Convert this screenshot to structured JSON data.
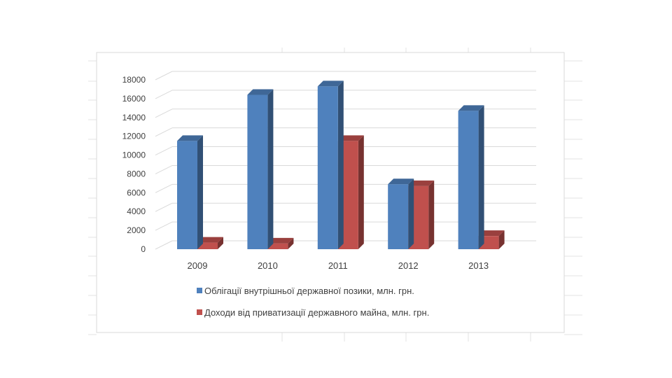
{
  "chart_data": {
    "type": "bar",
    "style": "3d-clustered-column",
    "title": "",
    "xlabel": "",
    "ylabel": "",
    "categories": [
      "2009",
      "2010",
      "2011",
      "2012",
      "2013"
    ],
    "series": [
      {
        "name": "Облігації внутрішньої державної позики, млн. грн.",
        "color": "#4F81BD",
        "values": [
          11500,
          16400,
          17300,
          6900,
          14700
        ]
      },
      {
        "name": "Доходи від приватизації державного майна, млн. грн.",
        "color": "#C0504D",
        "values": [
          700,
          600,
          11500,
          6700,
          1400
        ]
      }
    ],
    "ylim": [
      0,
      18000
    ],
    "yticks": [
      "0",
      "2000",
      "4000",
      "6000",
      "8000",
      "10000",
      "12000",
      "14000",
      "16000",
      "18000"
    ],
    "grid": true,
    "legend": "bottom"
  }
}
